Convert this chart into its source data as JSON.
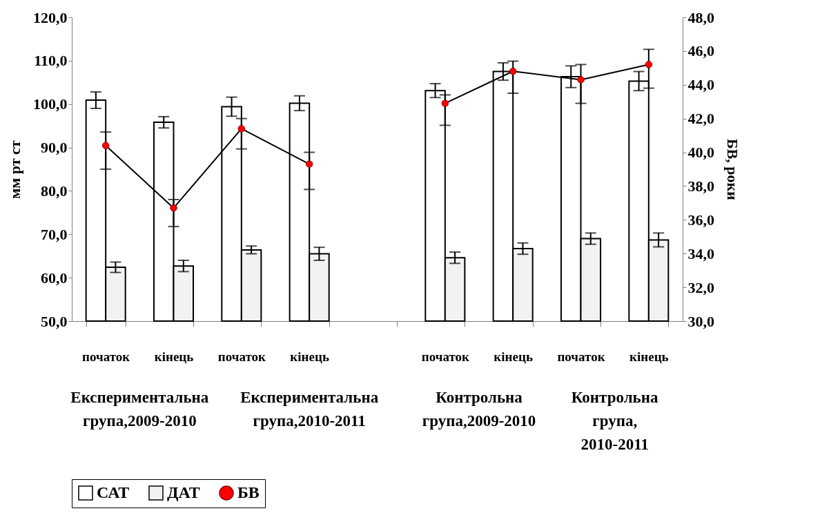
{
  "chart_data": {
    "type": "bar",
    "ylabel": "мм рт ст",
    "y2label": "БВ, роки",
    "categories": [
      "початок",
      "кінець",
      "початок",
      "кінець",
      null,
      "початок",
      "кінець",
      "початок",
      "кінець"
    ],
    "series": [
      {
        "name": "САТ",
        "color": "#ffffff",
        "values": [
          100.9,
          95.8,
          99.4,
          100.2,
          null,
          103.1,
          107.5,
          106.3,
          105.3
        ],
        "errors": [
          1.9,
          1.3,
          2.2,
          1.7,
          null,
          1.6,
          2.0,
          2.5,
          2.2
        ]
      },
      {
        "name": "ДАТ",
        "color": "#f2f2f2",
        "values": [
          62.4,
          62.7,
          66.4,
          65.5,
          null,
          64.6,
          66.7,
          69.0,
          68.7
        ],
        "errors": [
          1.2,
          1.3,
          0.9,
          1.5,
          null,
          1.3,
          1.3,
          1.3,
          1.6
        ]
      },
      {
        "name": "БВ",
        "type": "line",
        "axis": "y2",
        "color": "#ff0000",
        "values": [
          40.4,
          36.7,
          41.4,
          39.3,
          null,
          42.9,
          44.8,
          44.3,
          45.2
        ],
        "errors": [
          [
            39.0,
            41.2
          ],
          [
            35.6,
            37.2
          ],
          [
            40.2,
            42.0
          ],
          [
            37.8,
            40.0
          ],
          null,
          [
            41.6,
            43.4
          ],
          [
            43.5,
            45.4
          ],
          [
            42.9,
            45.2
          ],
          [
            43.8,
            46.1
          ]
        ]
      }
    ],
    "ylim": [
      50,
      120
    ],
    "yticks": [
      {
        "value": 50,
        "label": "50,0"
      },
      {
        "value": 60,
        "label": "60,0"
      },
      {
        "value": 70,
        "label": "70,0"
      },
      {
        "value": 80,
        "label": "80,0"
      },
      {
        "value": 90,
        "label": "90,0"
      },
      {
        "value": 100,
        "label": "100,0"
      },
      {
        "value": 110,
        "label": "110,0"
      },
      {
        "value": 120,
        "label": "120,0"
      }
    ],
    "y2lim": [
      30,
      48
    ],
    "y2ticks": [
      {
        "value": 30,
        "label": "30,0"
      },
      {
        "value": 32,
        "label": "32,0"
      },
      {
        "value": 34,
        "label": "34,0"
      },
      {
        "value": 36,
        "label": "36,0"
      },
      {
        "value": 38,
        "label": "38,0"
      },
      {
        "value": 40,
        "label": "40,0"
      },
      {
        "value": 42,
        "label": "42,0"
      },
      {
        "value": 44,
        "label": "44,0"
      },
      {
        "value": 46,
        "label": "46,0"
      },
      {
        "value": 48,
        "label": "48,0"
      }
    ],
    "annotations": [
      "Експериментальна група,2009-2010",
      "Експериментальна група,2010-2011",
      "Контрольна група,2009-2010",
      "Контрольна група, 2010-2011"
    ],
    "grid": false,
    "legend": "bottom",
    "marker": "circle"
  }
}
